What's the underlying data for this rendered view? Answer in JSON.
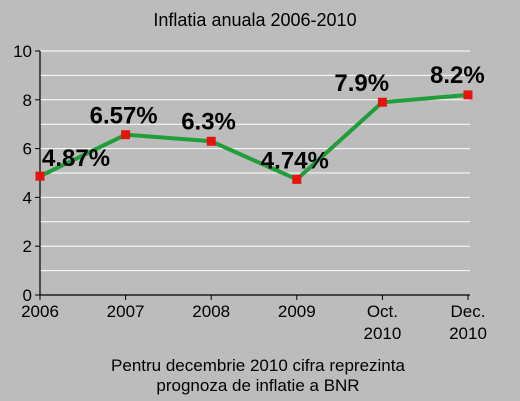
{
  "chart_data": {
    "type": "line",
    "title": "Inflatia anuala 2006-2010",
    "categories": [
      [
        "2006"
      ],
      [
        "2007"
      ],
      [
        "2008"
      ],
      [
        "2009"
      ],
      [
        "Oct.",
        "2010"
      ],
      [
        "Dec.",
        "2010"
      ]
    ],
    "values": [
      4.87,
      6.57,
      6.3,
      4.74,
      7.9,
      8.2
    ],
    "data_labels": [
      "4.87%",
      "6.57%",
      "6.3%",
      "4.74%",
      "7.9%",
      "8.2%"
    ],
    "ylim": [
      0,
      10
    ],
    "yticks": [
      "0",
      "2",
      "4",
      "6",
      "8",
      "10"
    ],
    "grid": true,
    "xlabel": "",
    "ylabel": "",
    "footnote": [
      "Pentru decembrie 2010 cifra reprezinta",
      "prognoza de inflatie a BNR"
    ],
    "colors": {
      "line": "#1f9e3a",
      "marker": "#e4140e",
      "background": "#bcbcbc",
      "grid": "#ffffff"
    }
  }
}
